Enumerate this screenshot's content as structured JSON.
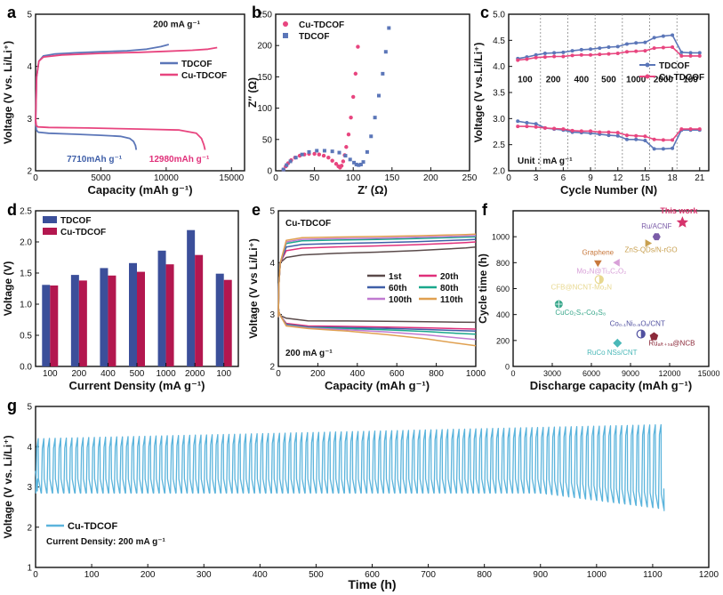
{
  "figure": {
    "panels": [
      "a",
      "b",
      "c",
      "d",
      "e",
      "f",
      "g"
    ]
  },
  "chart_data": [
    {
      "id": "a",
      "type": "line",
      "panel_label": "a",
      "xlabel": "Capacity (mAh g⁻¹)",
      "ylabel": "Voltage (V vs. Li/Li⁺)",
      "xlim": [
        0,
        16000
      ],
      "ylim": [
        2,
        5
      ],
      "x_ticks": [
        0,
        5000,
        10000,
        15000
      ],
      "y_ticks": [
        2,
        3,
        4,
        5
      ],
      "annotations": [
        {
          "text": "200 mA g⁻¹",
          "x": 10800,
          "y": 4.75,
          "color": "#111111"
        },
        {
          "text": "7710mAh g⁻¹",
          "x": 4500,
          "y": 2.17,
          "color": "#3f5fa8"
        },
        {
          "text": "12980mAh g⁻¹",
          "x": 11000,
          "y": 2.17,
          "color": "#e0307a"
        }
      ],
      "legend": [
        {
          "name": "TDCOF",
          "color": "#5b76b8"
        },
        {
          "name": "Cu-TDCOF",
          "color": "#e8457f"
        }
      ],
      "series": [
        {
          "name": "TDCOF charge",
          "color": "#5b76b8",
          "x": [
            0,
            80,
            250,
            600,
            1500,
            3000,
            5000,
            7000,
            8500,
            9600,
            10200
          ],
          "y": [
            2.9,
            3.8,
            4.1,
            4.2,
            4.24,
            4.26,
            4.28,
            4.3,
            4.33,
            4.38,
            4.42
          ]
        },
        {
          "name": "TDCOF discharge",
          "color": "#5b76b8",
          "x": [
            0,
            60,
            200,
            1000,
            3000,
            5000,
            6500,
            7200,
            7500,
            7650,
            7710
          ],
          "y": [
            2.98,
            2.78,
            2.74,
            2.72,
            2.7,
            2.68,
            2.66,
            2.62,
            2.56,
            2.48,
            2.4
          ]
        },
        {
          "name": "Cu-TDCOF charge",
          "color": "#e8457f",
          "x": [
            0,
            80,
            250,
            600,
            2000,
            5000,
            8000,
            10000,
            12000,
            13200,
            13900
          ],
          "y": [
            2.9,
            3.8,
            4.1,
            4.18,
            4.22,
            4.25,
            4.27,
            4.29,
            4.31,
            4.33,
            4.36
          ]
        },
        {
          "name": "Cu-TDCOF discharge",
          "color": "#e8457f",
          "x": [
            0,
            60,
            200,
            1000,
            4000,
            8000,
            11000,
            12300,
            12700,
            12880,
            12980
          ],
          "y": [
            3.0,
            2.86,
            2.84,
            2.83,
            2.82,
            2.8,
            2.78,
            2.72,
            2.62,
            2.5,
            2.4
          ]
        }
      ]
    },
    {
      "id": "b",
      "type": "scatter",
      "panel_label": "b",
      "xlabel": "Z′ (Ω)",
      "ylabel": "Z″ (Ω)",
      "xlim": [
        0,
        250
      ],
      "ylim": [
        0,
        250
      ],
      "x_ticks": [
        0,
        50,
        100,
        150,
        200,
        250
      ],
      "y_ticks": [
        0,
        50,
        100,
        150,
        200,
        250
      ],
      "legend": [
        {
          "name": "Cu-TDCOF",
          "color": "#e8457f",
          "marker": "circle"
        },
        {
          "name": "TDCOF",
          "color": "#5b76b8",
          "marker": "square"
        }
      ],
      "series": [
        {
          "name": "Cu-TDCOF",
          "color": "#e8457f",
          "marker": "circle",
          "x": [
            10,
            13,
            16,
            20,
            25,
            31,
            37,
            43,
            50,
            56,
            62,
            68,
            73,
            78,
            81,
            83,
            85,
            87,
            89,
            91,
            94,
            97,
            100,
            103,
            106
          ],
          "y": [
            2,
            7,
            12,
            17,
            21,
            24,
            26,
            27,
            27,
            26,
            24,
            21,
            16,
            11,
            7,
            5,
            8,
            15,
            25,
            38,
            58,
            85,
            118,
            155,
            198
          ]
        },
        {
          "name": "TDCOF",
          "color": "#5b76b8",
          "marker": "square",
          "x": [
            10,
            14,
            19,
            26,
            34,
            43,
            53,
            63,
            73,
            82,
            90,
            96,
            101,
            104,
            107,
            110,
            113,
            118,
            123,
            128,
            133,
            138,
            142,
            146
          ],
          "y": [
            2,
            9,
            15,
            21,
            26,
            30,
            32,
            32,
            31,
            29,
            24,
            18,
            13,
            10,
            9,
            10,
            14,
            30,
            55,
            85,
            120,
            155,
            190,
            228
          ]
        }
      ]
    },
    {
      "id": "c",
      "type": "line",
      "panel_label": "c",
      "xlabel": "Cycle Number (N)",
      "ylabel": "Voltage (V vs.Li/Li⁺)",
      "xlim": [
        0,
        22
      ],
      "ylim": [
        2.0,
        5.0
      ],
      "x_ticks": [
        0,
        3,
        6,
        9,
        12,
        15,
        18,
        21
      ],
      "y_ticks": [
        2.0,
        2.5,
        3.0,
        3.5,
        4.0,
        4.5,
        5.0
      ],
      "segment_boundaries": [
        3.5,
        6.5,
        9.5,
        12.5,
        15.5,
        18.5
      ],
      "segment_labels": [
        {
          "text": "100",
          "x": 1.8
        },
        {
          "text": "200",
          "x": 4.9
        },
        {
          "text": "400",
          "x": 8.0
        },
        {
          "text": "500",
          "x": 11.0
        },
        {
          "text": "1000",
          "x": 14.0
        },
        {
          "text": "2000",
          "x": 17.0
        },
        {
          "text": "100",
          "x": 20.0
        }
      ],
      "segment_label_y": 3.7,
      "unit_note": "Unit : mA g⁻¹",
      "legend": [
        {
          "name": "TDCOF",
          "color": "#5b76b8"
        },
        {
          "name": "Cu-TDCOF",
          "color": "#e8457f"
        }
      ],
      "series": [
        {
          "name": "TDCOF charge",
          "color": "#5b76b8",
          "x": [
            1,
            2,
            3,
            4,
            5,
            6,
            7,
            8,
            9,
            10,
            11,
            12,
            13,
            14,
            15,
            16,
            17,
            18,
            19,
            20,
            21
          ],
          "y": [
            4.15,
            4.18,
            4.22,
            4.25,
            4.26,
            4.27,
            4.3,
            4.32,
            4.33,
            4.35,
            4.37,
            4.38,
            4.43,
            4.45,
            4.46,
            4.55,
            4.58,
            4.6,
            4.27,
            4.26,
            4.26
          ]
        },
        {
          "name": "Cu-TDCOF charge",
          "color": "#e8457f",
          "x": [
            1,
            2,
            3,
            4,
            5,
            6,
            7,
            8,
            9,
            10,
            11,
            12,
            13,
            14,
            15,
            16,
            17,
            18,
            19,
            20,
            21
          ],
          "y": [
            4.12,
            4.14,
            4.17,
            4.18,
            4.19,
            4.19,
            4.21,
            4.22,
            4.22,
            4.23,
            4.24,
            4.25,
            4.28,
            4.29,
            4.3,
            4.35,
            4.36,
            4.37,
            4.2,
            4.2,
            4.2
          ]
        },
        {
          "name": "TDCOF discharge",
          "color": "#5b76b8",
          "x": [
            1,
            2,
            3,
            4,
            5,
            6,
            7,
            8,
            9,
            10,
            11,
            12,
            13,
            14,
            15,
            16,
            17,
            18,
            19,
            20,
            21
          ],
          "y": [
            2.95,
            2.92,
            2.9,
            2.82,
            2.8,
            2.78,
            2.74,
            2.73,
            2.72,
            2.7,
            2.68,
            2.67,
            2.6,
            2.6,
            2.58,
            2.42,
            2.42,
            2.43,
            2.78,
            2.78,
            2.78
          ]
        },
        {
          "name": "Cu-TDCOF discharge",
          "color": "#e8457f",
          "x": [
            1,
            2,
            3,
            4,
            5,
            6,
            7,
            8,
            9,
            10,
            11,
            12,
            13,
            14,
            15,
            16,
            17,
            18,
            19,
            20,
            21
          ],
          "y": [
            2.85,
            2.85,
            2.84,
            2.82,
            2.81,
            2.8,
            2.77,
            2.76,
            2.76,
            2.74,
            2.74,
            2.73,
            2.68,
            2.67,
            2.66,
            2.6,
            2.59,
            2.59,
            2.8,
            2.8,
            2.8
          ]
        }
      ]
    },
    {
      "id": "d",
      "type": "bar",
      "panel_label": "d",
      "xlabel": "Current Density (mA g⁻¹)",
      "ylabel": "Voltage (V)",
      "ylim": [
        0.0,
        2.5
      ],
      "y_ticks": [
        0.0,
        0.5,
        1.0,
        1.5,
        2.0,
        2.5
      ],
      "categories": [
        "100",
        "200",
        "400",
        "500",
        "1000",
        "2000",
        "100"
      ],
      "series": [
        {
          "name": "TDCOF",
          "color": "#3b4f9a",
          "values": [
            1.31,
            1.47,
            1.58,
            1.66,
            1.86,
            2.19,
            1.49
          ]
        },
        {
          "name": "Cu-TDCOF",
          "color": "#b3174f",
          "values": [
            1.3,
            1.38,
            1.46,
            1.52,
            1.64,
            1.79,
            1.39
          ]
        }
      ]
    },
    {
      "id": "e",
      "type": "line",
      "panel_label": "e",
      "title": "Cu-TDCOF",
      "note": "200 mA g⁻¹",
      "xlabel": "Capacity (mAh g⁻¹)",
      "ylabel": "Voltage (V vs Li/Li⁺)",
      "xlim": [
        0,
        1000
      ],
      "ylim": [
        2,
        5
      ],
      "x_ticks": [
        0,
        200,
        400,
        600,
        800,
        1000
      ],
      "y_ticks": [
        2,
        3,
        4,
        5
      ],
      "series": [
        {
          "name": "1st",
          "color": "#5a4a4a",
          "charge_end": 4.3,
          "charge_plateau": 4.15,
          "discharge_plateau": 2.88,
          "discharge_end": 2.85
        },
        {
          "name": "20th",
          "color": "#e0307a",
          "charge_end": 4.4,
          "charge_plateau": 4.28,
          "discharge_plateau": 2.78,
          "discharge_end": 2.72
        },
        {
          "name": "60th",
          "color": "#3f5fa8",
          "charge_end": 4.45,
          "charge_plateau": 4.35,
          "discharge_plateau": 2.76,
          "discharge_end": 2.68
        },
        {
          "name": "80th",
          "color": "#1aa88c",
          "charge_end": 4.5,
          "charge_plateau": 4.42,
          "discharge_plateau": 2.75,
          "discharge_end": 2.62
        },
        {
          "name": "100th",
          "color": "#c07ad0",
          "charge_end": 4.52,
          "charge_plateau": 4.45,
          "discharge_plateau": 2.74,
          "discharge_end": 2.52
        },
        {
          "name": "110th",
          "color": "#e0a050",
          "charge_end": 4.55,
          "charge_plateau": 4.48,
          "discharge_plateau": 2.73,
          "discharge_end": 2.4
        }
      ]
    },
    {
      "id": "f",
      "type": "scatter",
      "panel_label": "f",
      "xlabel": "Discharge capacity (mAh g⁻¹)",
      "ylabel": "Cycle time (h)",
      "xlim": [
        0,
        15000
      ],
      "ylim": [
        0,
        1200
      ],
      "x_ticks": [
        0,
        3000,
        6000,
        9000,
        12000,
        15000
      ],
      "y_ticks": [
        0,
        200,
        400,
        600,
        800,
        1000
      ],
      "points": [
        {
          "label": "This work",
          "x": 12980,
          "y": 1110,
          "color": "#d6336c",
          "marker": "star"
        },
        {
          "label": "Ru/ACNF",
          "x": 11000,
          "y": 1000,
          "color": "#7b5ca8",
          "marker": "hexagon"
        },
        {
          "label": "ZnS-QDs/N-rGO",
          "x": 10300,
          "y": 950,
          "color": "#c8a050",
          "marker": "triangle-right"
        },
        {
          "label": "Graphene",
          "x": 6500,
          "y": 800,
          "color": "#c8783c",
          "marker": "triangle-down"
        },
        {
          "label": "Mo₂N@Ti₃C₂O₂",
          "x": 8000,
          "y": 800,
          "color": "#d8a0d8",
          "marker": "triangle-left"
        },
        {
          "label": "CFB@NCNT-Mo₂N",
          "x": 6600,
          "y": 670,
          "color": "#e8d890",
          "marker": "circle-half"
        },
        {
          "label": "CuCo₂S₄-Co₉S₈",
          "x": 3500,
          "y": 480,
          "color": "#3aa88c",
          "marker": "circle-cross"
        },
        {
          "label": "Co₀.₁Ni₀.₉Oₓ/CNT",
          "x": 9800,
          "y": 250,
          "color": "#5050a0",
          "marker": "circle-half"
        },
        {
          "label": "Ruₐₗₜ₊ₛₐ@NCB",
          "x": 10800,
          "y": 230,
          "color": "#8c2a3a",
          "marker": "pentagon"
        },
        {
          "label": "RuCo NSs/CNT",
          "x": 8000,
          "y": 180,
          "color": "#4ab8b8",
          "marker": "diamond"
        }
      ]
    },
    {
      "id": "g",
      "type": "line",
      "panel_label": "g",
      "xlabel": "Time (h)",
      "ylabel": "Voltage (V vs. Li/Li⁺)",
      "xlim": [
        0,
        1200
      ],
      "ylim": [
        1,
        5
      ],
      "x_ticks": [
        0,
        100,
        200,
        300,
        400,
        500,
        600,
        700,
        800,
        900,
        1000,
        1100,
        1200
      ],
      "y_ticks": [
        1,
        2,
        3,
        4,
        5
      ],
      "legend": [
        {
          "name": "Cu-TDCOF",
          "color": "#5bb4dc"
        }
      ],
      "note": "Current Density: 200 mA g⁻¹",
      "series": [
        {
          "name": "Cu-TDCOF",
          "color": "#5bb4dc",
          "cycle_period_h": 10,
          "end_time_h": 1120,
          "charge_start": 4.2,
          "charge_end": 4.55,
          "discharge_start": 2.85,
          "discharge_end": 2.45
        }
      ]
    }
  ]
}
